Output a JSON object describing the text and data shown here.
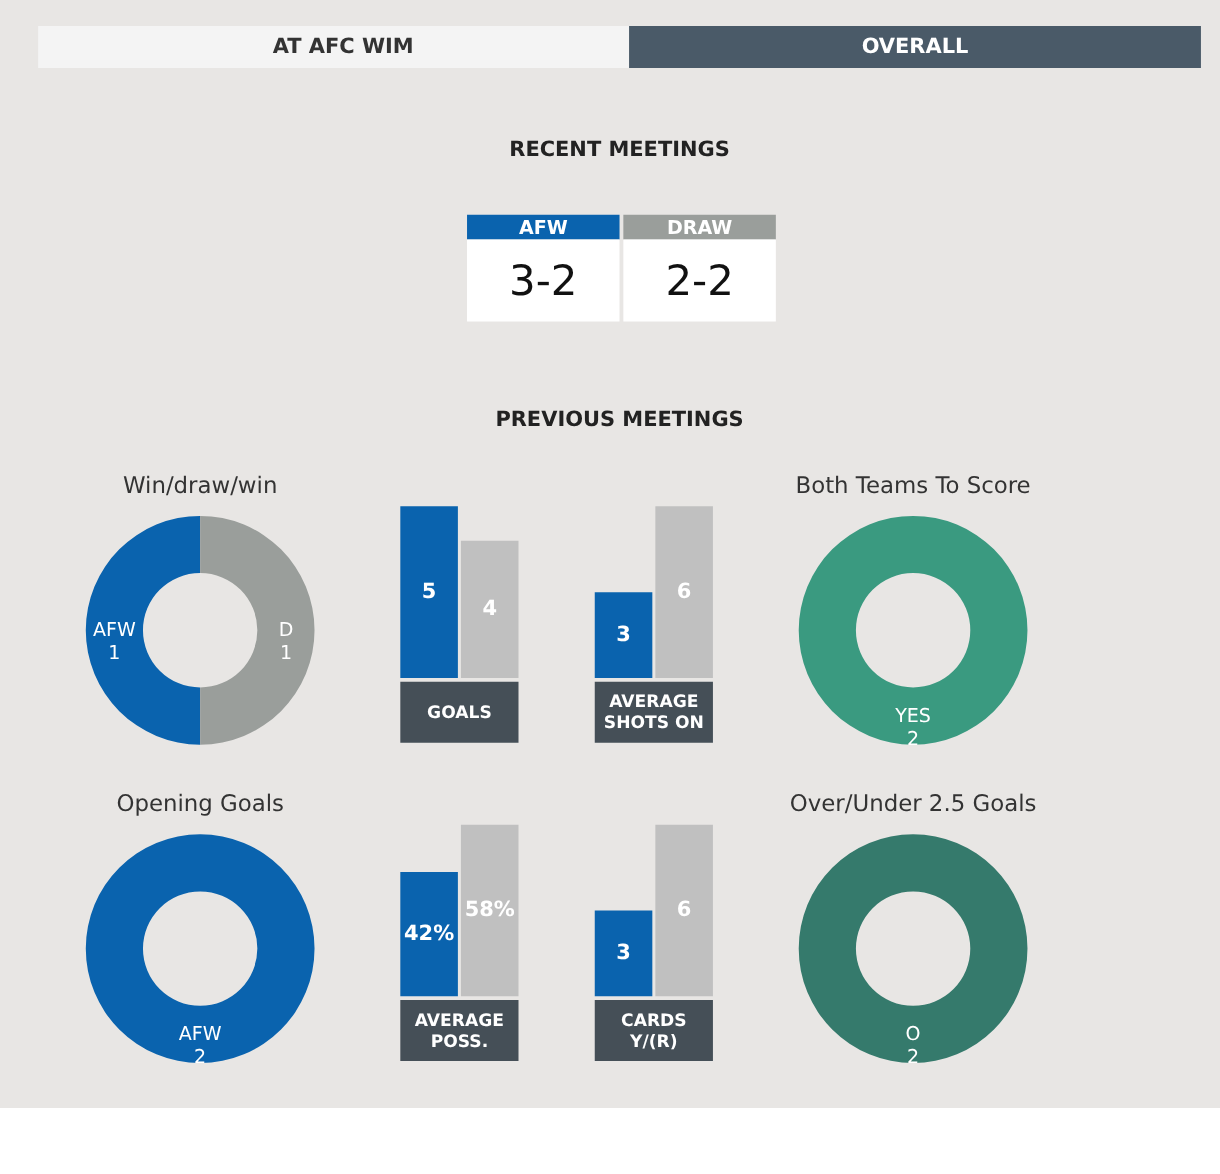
{
  "chart_data": [
    {
      "type": "other",
      "title": "RECENT MEETINGS",
      "annotations": [
        "AT AFC WIM",
        "OVERALL",
        "AFW",
        "3-2",
        "DRAW",
        "2-2",
        "PREVIOUS MEETINGS"
      ]
    },
    {
      "type": "donut",
      "title": "Win/draw/win",
      "categories": [
        "AFW",
        "D"
      ],
      "values": [
        1,
        1
      ],
      "colors": [
        "#0a63ae",
        "#9a9e9b"
      ],
      "data_labels": true
    },
    {
      "type": "bar",
      "categories": [
        null,
        null
      ],
      "values": [
        5,
        4
      ],
      "colors": [
        "#0a63ae",
        "#c0c0c0"
      ],
      "data_labels": true,
      "xlabel": "GOALS"
    },
    {
      "type": "bar",
      "categories": [
        null,
        null
      ],
      "values": [
        3,
        6
      ],
      "colors": [
        "#0a63ae",
        "#c0c0c0"
      ],
      "data_labels": true,
      "xlabel": "AVERAGE SHOTS ON"
    },
    {
      "type": "donut",
      "title": "Both Teams To Score",
      "categories": [
        "YES"
      ],
      "values": [
        2
      ],
      "colors": [
        "#3a9a80"
      ],
      "data_labels": true
    },
    {
      "type": "donut",
      "title": "Opening Goals",
      "categories": [
        "AFW"
      ],
      "values": [
        2
      ],
      "colors": [
        "#0a63ae"
      ],
      "data_labels": true
    },
    {
      "type": "bar",
      "categories": [
        null,
        null
      ],
      "values": [
        42,
        58
      ],
      "value_labels": [
        "42%",
        "58%"
      ],
      "colors": [
        "#0a63ae",
        "#c0c0c0"
      ],
      "xlabel": "AVERAGE POSS."
    },
    {
      "type": "bar",
      "categories": [
        null,
        null
      ],
      "values": [
        3,
        6
      ],
      "colors": [
        "#0a63ae",
        "#c0c0c0"
      ],
      "data_labels": true,
      "xlabel": "CARDS Y/(R)"
    },
    {
      "type": "donut",
      "title": "Over/Under 2.5 Goals",
      "categories": [
        "O"
      ],
      "values": [
        2
      ],
      "colors": [
        "#357a6c"
      ],
      "data_labels": true
    }
  ]
}
